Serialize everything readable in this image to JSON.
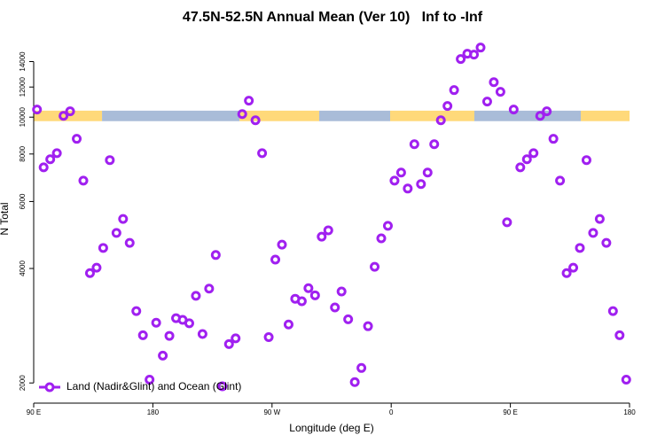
{
  "chart_data": {
    "type": "scatter",
    "title": "47.5N-52.5N Annual Mean (Ver 10)   Inf to -Inf",
    "xlabel": "Longitude (deg E)",
    "ylabel": "N Total",
    "xlim": [
      90,
      540
    ],
    "ylim": [
      1770,
      16400
    ],
    "log_y": true,
    "xticks": [
      {
        "value": 90,
        "label": "90 E"
      },
      {
        "value": 180,
        "label": "180"
      },
      {
        "value": 270,
        "label": "90 W"
      },
      {
        "value": 360,
        "label": "0"
      },
      {
        "value": 450,
        "label": "90 E"
      },
      {
        "value": 540,
        "label": "180"
      }
    ],
    "yticks": [
      2000,
      4000,
      6000,
      8000,
      10000,
      12000,
      14000
    ],
    "legend_position": "bottom-left",
    "surface_band": {
      "ylim": [
        9760,
        10400
      ],
      "segments": [
        {
          "xlim": [
            90,
            141.6
          ],
          "color": "#ffd97a"
        },
        {
          "xlim": [
            141.6,
            245.4
          ],
          "color": "#a9bcd8"
        },
        {
          "xlim": [
            245.4,
            305.6
          ],
          "color": "#ffd97a"
        },
        {
          "xlim": [
            305.6,
            359.2
          ],
          "color": "#a9bcd8"
        },
        {
          "xlim": [
            359.2,
            422.8
          ],
          "color": "#ffd97a"
        },
        {
          "xlim": [
            422.8,
            503.2
          ],
          "color": "#a9bcd8"
        },
        {
          "xlim": [
            503.2,
            540
          ],
          "color": "#ffd97a"
        }
      ]
    },
    "series": [
      {
        "name": "Land (Nadir&Glint) and Ocean (Glint)",
        "color": "#a020f0",
        "x": [
          92.5,
          97.5,
          102.5,
          107.5,
          112.5,
          117.5,
          122.5,
          127.5,
          132.5,
          137.5,
          142.5,
          147.5,
          152.5,
          157.5,
          162.5,
          167.5,
          172.5,
          177.5,
          182.5,
          187.5,
          192.5,
          197.5,
          202.5,
          207.5,
          212.5,
          217.5,
          222.5,
          227.5,
          232.5,
          237.5,
          242.5,
          247.5,
          252.5,
          257.5,
          262.5,
          267.5,
          272.5,
          277.5,
          282.5,
          287.5,
          292.5,
          297.5,
          302.5,
          307.5,
          312.5,
          317.5,
          322.5,
          327.5,
          332.5,
          337.5,
          342.5,
          347.5,
          352.5,
          357.5,
          362.5,
          367.5,
          372.5,
          377.5,
          382.5,
          387.5,
          392.5,
          397.5,
          402.5,
          407.5,
          412.5,
          417.5,
          422.5,
          427.5,
          432.5,
          437.5,
          442.5,
          447.5,
          452.5,
          457.5,
          462.5,
          467.5,
          472.5,
          477.5,
          482.5,
          487.5,
          492.5,
          497.5,
          502.5,
          507.5,
          512.5,
          517.5,
          522.5,
          527.5,
          532.5,
          537.5
        ],
        "values": [
          10470,
          7380,
          7750,
          8040,
          10080,
          10360,
          8770,
          6810,
          3890,
          4020,
          4530,
          7710,
          4960,
          5400,
          4670,
          3090,
          2670,
          2040,
          2880,
          2360,
          2660,
          2960,
          2930,
          2870,
          3390,
          2690,
          3540,
          4340,
          1960,
          2530,
          2620,
          10190,
          11050,
          9810,
          8040,
          2640,
          4220,
          4620,
          2850,
          3330,
          3280,
          3550,
          3400,
          4850,
          5040,
          3160,
          3480,
          2940,
          2010,
          2190,
          2820,
          4040,
          4800,
          5180,
          6810,
          7150,
          6490,
          8490,
          6670,
          7150,
          8490,
          9810,
          10700,
          11780,
          14220,
          14680,
          14600,
          15240,
          10990,
          12360,
          11660,
          5290,
          10470,
          7380,
          7750,
          8040,
          10080,
          10360,
          8770,
          6810,
          3890,
          4020,
          4530,
          7710,
          4960,
          5400,
          4670,
          3090,
          2670,
          2040
        ]
      }
    ]
  }
}
